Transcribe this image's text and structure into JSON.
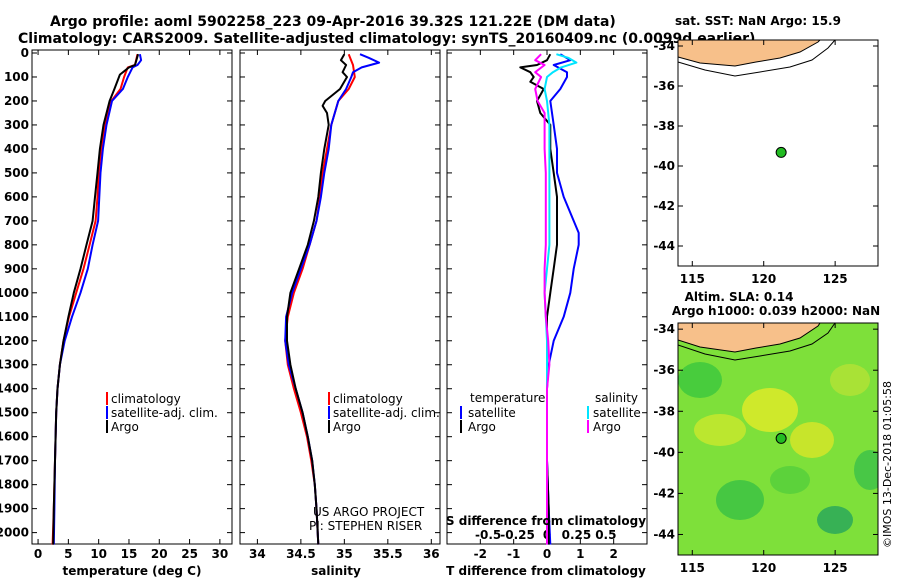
{
  "header": {
    "line1": "Argo profile: aoml 5902258_223 09-Apr-2016 39.32S 121.22E (DM data)",
    "line2": "Climatology: CARS2009. Satellite-adjusted climatology: synTS_20160409.nc (0.0099d earlier)"
  },
  "colors": {
    "climatology": "#ff0000",
    "satellite": "#0000ff",
    "argo": "#000000",
    "sat_salinity": "#00e5ff",
    "argo_salinity": "#ff00ff",
    "land": "#f7c08a",
    "station": "#22bb22"
  },
  "depth_ticks": [
    "0",
    "100",
    "200",
    "300",
    "400",
    "500",
    "600",
    "700",
    "800",
    "900",
    "1000",
    "1100",
    "1200",
    "1300",
    "1400",
    "1500",
    "1600",
    "1700",
    "1800",
    "1900",
    "2000"
  ],
  "chart_data": [
    {
      "type": "line",
      "title": "",
      "xlabel": "temperature (deg C)",
      "ylabel": "depth",
      "xlim": [
        -1,
        32
      ],
      "ylim": [
        2060,
        0
      ],
      "xticks": [
        0,
        5,
        10,
        15,
        20,
        25,
        30
      ],
      "tick_labels": [
        "0",
        "5",
        "10",
        "15",
        "20",
        "25",
        "30"
      ],
      "legend": [
        "climatology",
        "satellite-adj. clim.",
        "Argo"
      ],
      "series": [
        {
          "name": "climatology",
          "depth": [
            5,
            50,
            60,
            80,
            100,
            150,
            200,
            300,
            400,
            500,
            600,
            700,
            800,
            900,
            1000,
            1100,
            1200,
            1300,
            1400,
            1500,
            1700,
            1900,
            2050
          ],
          "values": [
            16.4,
            16.0,
            14.8,
            14.5,
            14.2,
            13.6,
            12.1,
            11.0,
            10.4,
            10.0,
            9.8,
            9.5,
            8.5,
            7.5,
            6.3,
            5.1,
            4.2,
            3.6,
            3.2,
            3.0,
            2.8,
            2.6,
            2.4
          ]
        },
        {
          "name": "satellite-adj. clim.",
          "depth": [
            5,
            30,
            50,
            60,
            80,
            100,
            150,
            200,
            300,
            400,
            500,
            600,
            700,
            800,
            900,
            1000,
            1100,
            1200,
            1300,
            1400,
            1500,
            1700,
            1900,
            2050
          ],
          "values": [
            16.8,
            17.0,
            16.4,
            15.6,
            15.2,
            14.8,
            14.0,
            12.2,
            11.3,
            10.7,
            10.3,
            10.1,
            9.9,
            9.0,
            8.2,
            7.0,
            5.6,
            4.4,
            3.6,
            3.2,
            3.0,
            2.8,
            2.7,
            2.6
          ]
        },
        {
          "name": "Argo",
          "depth": [
            5,
            50,
            60,
            90,
            150,
            200,
            300,
            400,
            500,
            600,
            700,
            800,
            900,
            1000,
            1100,
            1200,
            1300,
            1400,
            1500,
            1700,
            1900,
            2050
          ],
          "values": [
            16.5,
            16.0,
            15.0,
            13.5,
            12.6,
            11.8,
            10.8,
            10.2,
            9.8,
            9.4,
            9.0,
            8.0,
            7.0,
            5.9,
            5.0,
            4.2,
            3.6,
            3.2,
            3.0,
            2.8,
            2.6,
            2.5
          ]
        }
      ]
    },
    {
      "type": "line",
      "xlabel": "salinity",
      "ylabel": "depth",
      "xlim": [
        33.8,
        36.1
      ],
      "ylim": [
        2060,
        0
      ],
      "xticks": [
        34,
        34.5,
        35,
        35.5,
        36
      ],
      "tick_labels": [
        "34",
        "34.5",
        "35",
        "35.5",
        "36"
      ],
      "legend": [
        "climatology",
        "satellite-adj. clim.",
        "Argo"
      ],
      "credit_line1": "US ARGO PROJECT",
      "credit_line2": "PI: STEPHEN RISER",
      "series": [
        {
          "name": "climatology",
          "depth": [
            5,
            50,
            100,
            150,
            200,
            300,
            400,
            500,
            600,
            700,
            800,
            900,
            1000,
            1100,
            1200,
            1300,
            1400,
            1500,
            1600,
            1700,
            1800,
            1900,
            2050
          ],
          "values": [
            35.05,
            35.1,
            35.12,
            35.05,
            34.93,
            34.85,
            34.8,
            34.75,
            34.72,
            34.68,
            34.6,
            34.52,
            34.42,
            34.35,
            34.32,
            34.35,
            34.42,
            34.5,
            34.57,
            34.62,
            34.66,
            34.68,
            34.7
          ]
        },
        {
          "name": "satellite-adj. clim.",
          "depth": [
            5,
            20,
            40,
            60,
            80,
            100,
            150,
            200,
            300,
            400,
            500,
            600,
            700,
            800,
            900,
            1000,
            1100,
            1200,
            1300,
            1400,
            1500,
            1600,
            1700,
            1800,
            1900,
            2050
          ],
          "values": [
            35.18,
            35.28,
            35.4,
            35.2,
            35.1,
            35.08,
            35.02,
            34.93,
            34.85,
            34.82,
            34.77,
            34.73,
            34.68,
            34.6,
            34.5,
            34.4,
            34.33,
            34.32,
            34.36,
            34.44,
            34.52,
            34.58,
            34.63,
            34.66,
            34.68,
            34.7
          ]
        },
        {
          "name": "Argo",
          "depth": [
            5,
            30,
            50,
            80,
            100,
            150,
            200,
            220,
            250,
            300,
            400,
            500,
            600,
            700,
            800,
            900,
            1000,
            1100,
            1200,
            1300,
            1400,
            1500,
            1600,
            1700,
            1800,
            1900,
            2050
          ],
          "values": [
            35.0,
            34.96,
            35.02,
            34.98,
            35.03,
            34.95,
            34.78,
            34.75,
            34.8,
            34.82,
            34.77,
            34.73,
            34.7,
            34.65,
            34.58,
            34.48,
            34.38,
            34.34,
            34.34,
            34.38,
            34.44,
            34.52,
            34.58,
            34.63,
            34.66,
            34.68,
            34.7
          ]
        }
      ]
    },
    {
      "type": "line",
      "xlabel": "T difference from climatology",
      "xlabel2": "S difference from climatology",
      "ylabel": "depth",
      "xlim": [
        -3,
        3
      ],
      "ylim": [
        2060,
        0
      ],
      "xticks": [
        -2,
        -1,
        0,
        1,
        2
      ],
      "tick_labels": [
        "-2",
        "-1",
        "0",
        "1",
        "2"
      ],
      "s_ticks": [
        -0.5,
        -0.25,
        0,
        0.25,
        0.5
      ],
      "s_tick_labels": [
        "-0.5",
        "-0.25",
        "0",
        "0.25",
        "0.5"
      ],
      "legend_temperature": "temperature",
      "legend_salinity": "salinity",
      "legend_labels": [
        "satellite",
        "Argo",
        "satellite",
        "Argo"
      ],
      "series": [
        {
          "name": "temperature satellite",
          "depth": [
            5,
            30,
            50,
            80,
            100,
            150,
            200,
            300,
            400,
            500,
            600,
            700,
            750,
            800,
            900,
            1000,
            1100,
            1200,
            1300,
            1400,
            1500,
            1700,
            1900,
            2050
          ],
          "values": [
            0.4,
            0.7,
            0.2,
            0.6,
            0.6,
            0.4,
            0.1,
            0.2,
            0.3,
            0.3,
            0.5,
            0.8,
            0.95,
            0.95,
            0.8,
            0.7,
            0.5,
            0.2,
            0.05,
            0.0,
            0.0,
            0.0,
            0.05,
            0.1
          ]
        },
        {
          "name": "temperature Argo",
          "depth": [
            5,
            30,
            50,
            60,
            80,
            100,
            120,
            150,
            200,
            250,
            300,
            400,
            500,
            600,
            700,
            800,
            900,
            1000,
            1100,
            1200,
            1300,
            1400,
            1500,
            1700,
            1900,
            2050
          ],
          "values": [
            0.1,
            0.0,
            -0.3,
            -0.8,
            -0.5,
            -0.4,
            -0.5,
            -0.1,
            -0.3,
            -0.2,
            0.1,
            0.1,
            0.2,
            0.3,
            0.3,
            0.3,
            0.2,
            0.1,
            0.0,
            0.0,
            0.0,
            0.0,
            0.0,
            0.0,
            0.05,
            0.05
          ]
        },
        {
          "name": "salinity satellite",
          "depth": [
            5,
            20,
            40,
            60,
            80,
            100,
            150,
            200,
            300,
            400,
            500,
            600,
            700,
            800,
            900,
            1000,
            1100,
            1200,
            1300,
            1400,
            1500,
            1600,
            1700,
            1800,
            1900,
            2050
          ],
          "values": [
            0.08,
            0.18,
            0.25,
            0.12,
            0.05,
            0.0,
            -0.02,
            0.0,
            0.02,
            0.02,
            0.02,
            0.02,
            0.02,
            0.02,
            0.0,
            -0.02,
            -0.01,
            0.0,
            0.0,
            0.0,
            0.0,
            0.0,
            0.0,
            0.0,
            0.0,
            0.0
          ]
        },
        {
          "name": "salinity Argo",
          "depth": [
            5,
            30,
            50,
            80,
            100,
            150,
            200,
            250,
            300,
            400,
            500,
            600,
            700,
            800,
            900,
            1000,
            1100,
            1200,
            1300,
            1400,
            1500,
            1600,
            1700,
            1800,
            1900,
            2050
          ],
          "values": [
            -0.05,
            -0.1,
            -0.02,
            -0.1,
            -0.05,
            -0.1,
            -0.08,
            -0.02,
            -0.02,
            -0.02,
            -0.01,
            -0.01,
            -0.01,
            -0.01,
            -0.02,
            -0.02,
            -0.01,
            0.01,
            0.02,
            0.0,
            0.0,
            0.0,
            0.0,
            0.0,
            0.0,
            0.0
          ]
        }
      ]
    }
  ],
  "map_top": {
    "title": "sat. SST: NaN Argo: 15.9",
    "xlim": [
      114,
      128
    ],
    "ylim": [
      -45,
      -33.7
    ],
    "xticks": [
      115,
      120,
      125
    ],
    "xtick_labels": [
      "115",
      "120",
      "125"
    ],
    "yticks": [
      -34,
      -36,
      -38,
      -40,
      -42,
      -44
    ],
    "ytick_labels": [
      "-34",
      "-36",
      "-38",
      "-40",
      "-42",
      "-44"
    ],
    "station": {
      "lon": 121.22,
      "lat": -39.32
    }
  },
  "map_bottom": {
    "title_line1": "Altim. SLA: 0.14",
    "title_line2": "Argo h1000: 0.039 h2000: NaN",
    "credit": "©IMOS 13-Dec-2018 01:05:58",
    "xlim": [
      114,
      128
    ],
    "ylim": [
      -45,
      -33.7
    ],
    "xticks": [
      115,
      120,
      125
    ],
    "xtick_labels": [
      "115",
      "120",
      "125"
    ],
    "yticks": [
      -34,
      -36,
      -38,
      -40,
      -42,
      -44
    ],
    "ytick_labels": [
      "-34",
      "-36",
      "-38",
      "-40",
      "-42",
      "-44"
    ],
    "station": {
      "lon": 121.22,
      "lat": -39.32
    }
  }
}
